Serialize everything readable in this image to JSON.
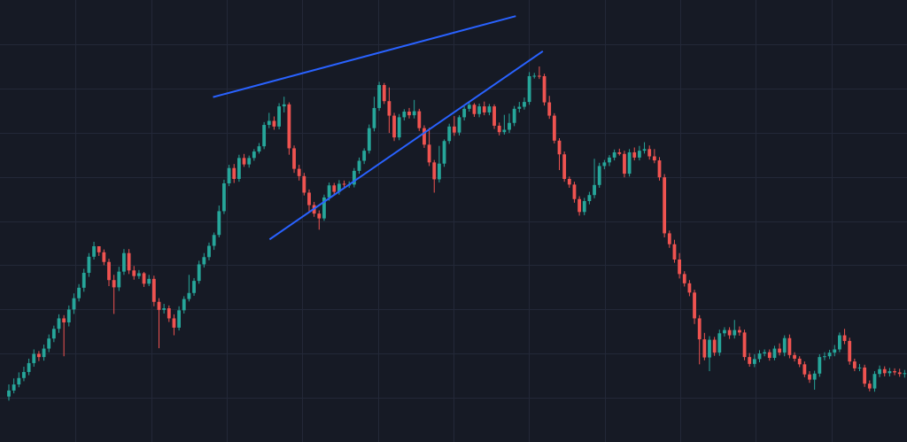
{
  "chart_data": {
    "type": "candlestick",
    "title": "",
    "xlabel": "",
    "ylabel": "",
    "grid": true,
    "legend": "none",
    "ylim": [
      0,
      100
    ],
    "colors": {
      "background": "#161a25",
      "grid": "#232838",
      "up": "#26a69a",
      "down": "#ef5350",
      "trendline": "#2962ff"
    },
    "candles": [
      [
        6.0,
        7.5,
        5.0,
        9.0
      ],
      [
        7.5,
        9.0,
        6.8,
        10.5
      ],
      [
        9.0,
        10.6,
        8.3,
        12.0
      ],
      [
        10.6,
        12.1,
        9.8,
        13.4
      ],
      [
        12.1,
        14.3,
        11.3,
        15.4
      ],
      [
        14.3,
        16.6,
        13.4,
        17.7
      ],
      [
        16.6,
        15.8,
        14.8,
        17.3
      ],
      [
        15.8,
        17.9,
        14.9,
        18.9
      ],
      [
        17.9,
        20.4,
        17.0,
        21.4
      ],
      [
        20.4,
        22.8,
        19.5,
        23.6
      ],
      [
        22.8,
        25.4,
        21.8,
        26.4
      ],
      [
        25.4,
        24.4,
        16.0,
        26.2
      ],
      [
        24.4,
        27.6,
        23.4,
        28.6
      ],
      [
        27.6,
        30.4,
        26.5,
        31.6
      ],
      [
        30.4,
        33.0,
        29.6,
        33.9
      ],
      [
        33.0,
        36.7,
        32.0,
        37.7
      ],
      [
        36.7,
        40.7,
        35.7,
        41.6
      ],
      [
        40.7,
        43.3,
        40.0,
        44.4
      ],
      [
        43.3,
        41.8,
        40.9,
        43.3
      ],
      [
        41.8,
        39.4,
        38.6,
        42.5
      ],
      [
        39.4,
        34.9,
        33.4,
        40.2
      ],
      [
        34.9,
        33.1,
        26.5,
        36.2
      ],
      [
        33.1,
        37.0,
        32.2,
        38.2
      ],
      [
        37.0,
        41.6,
        36.2,
        42.6
      ],
      [
        41.6,
        37.3,
        36.4,
        42.6
      ],
      [
        37.3,
        35.9,
        35.0,
        38.4
      ],
      [
        35.9,
        36.6,
        35.2,
        37.4
      ],
      [
        36.6,
        34.0,
        33.2,
        36.9
      ],
      [
        34.0,
        35.2,
        33.4,
        36.2
      ],
      [
        35.2,
        29.5,
        28.4,
        36.0
      ],
      [
        29.5,
        27.5,
        18.0,
        30.4
      ],
      [
        27.5,
        27.9,
        26.6,
        29.0
      ],
      [
        27.9,
        25.4,
        24.5,
        28.6
      ],
      [
        25.4,
        23.1,
        21.2,
        26.4
      ],
      [
        23.1,
        27.4,
        22.4,
        28.4
      ],
      [
        27.4,
        30.2,
        26.6,
        30.9
      ],
      [
        30.2,
        31.7,
        29.6,
        36.2
      ],
      [
        31.7,
        34.7,
        31.0,
        35.4
      ],
      [
        34.7,
        38.8,
        34.0,
        39.7
      ],
      [
        38.8,
        40.6,
        38.0,
        41.6
      ],
      [
        40.6,
        43.4,
        39.8,
        44.2
      ],
      [
        43.4,
        46.1,
        42.4,
        46.7
      ],
      [
        46.1,
        52.0,
        45.5,
        53.4
      ],
      [
        52.0,
        58.9,
        51.3,
        59.8
      ],
      [
        58.9,
        62.7,
        58.2,
        63.5
      ],
      [
        62.7,
        60.0,
        59.0,
        63.7
      ],
      [
        60.0,
        65.2,
        59.3,
        66.0
      ],
      [
        65.2,
        63.6,
        63.0,
        66.2
      ],
      [
        63.6,
        65.2,
        62.8,
        65.8
      ],
      [
        65.2,
        66.8,
        64.5,
        67.4
      ],
      [
        66.8,
        68.1,
        66.3,
        68.9
      ],
      [
        68.1,
        73.4,
        67.4,
        74.1
      ],
      [
        73.4,
        74.4,
        72.6,
        76.4
      ],
      [
        74.4,
        73.0,
        72.2,
        75.5
      ],
      [
        73.0,
        78.0,
        72.3,
        78.8
      ],
      [
        78.0,
        78.5,
        76.5,
        80.4
      ],
      [
        78.5,
        67.6,
        66.0,
        79.0
      ],
      [
        67.6,
        62.5,
        61.5,
        68.3
      ],
      [
        62.5,
        60.7,
        59.6,
        63.5
      ],
      [
        60.7,
        56.6,
        55.9,
        61.5
      ],
      [
        56.6,
        53.5,
        51.8,
        57.4
      ],
      [
        53.5,
        51.4,
        50.6,
        54.3
      ],
      [
        51.4,
        50.2,
        47.4,
        52.2
      ],
      [
        50.2,
        55.4,
        49.6,
        56.1
      ],
      [
        55.4,
        58.4,
        54.6,
        59.1
      ],
      [
        58.4,
        56.8,
        55.9,
        59.0
      ],
      [
        56.8,
        58.8,
        56.1,
        59.7
      ],
      [
        58.8,
        58.6,
        57.9,
        59.6
      ],
      [
        58.6,
        58.6,
        57.8,
        59.4
      ],
      [
        58.6,
        62.0,
        57.9,
        62.7
      ],
      [
        62.0,
        64.5,
        61.3,
        65.3
      ],
      [
        64.5,
        67.0,
        63.7,
        67.6
      ],
      [
        67.0,
        72.6,
        66.3,
        73.5
      ],
      [
        72.6,
        77.6,
        71.8,
        80.4
      ],
      [
        77.6,
        83.3,
        76.9,
        84.1
      ],
      [
        83.3,
        79.3,
        78.6,
        83.8
      ],
      [
        79.3,
        75.7,
        71.4,
        82.7
      ],
      [
        75.7,
        70.3,
        69.4,
        76.4
      ],
      [
        70.3,
        75.3,
        69.6,
        76.1
      ],
      [
        75.3,
        76.7,
        74.5,
        77.3
      ],
      [
        76.7,
        75.8,
        75.0,
        77.6
      ],
      [
        75.8,
        76.8,
        75.0,
        79.6
      ],
      [
        76.8,
        72.6,
        71.9,
        77.4
      ],
      [
        72.6,
        68.5,
        67.7,
        73.3
      ],
      [
        68.5,
        64.1,
        63.2,
        72.7
      ],
      [
        64.1,
        59.9,
        56.6,
        64.7
      ],
      [
        59.9,
        63.8,
        59.1,
        68.2
      ],
      [
        63.8,
        69.4,
        63.0,
        69.8
      ],
      [
        69.4,
        73.0,
        68.7,
        73.7
      ],
      [
        73.0,
        71.5,
        70.7,
        75.6
      ],
      [
        71.5,
        75.3,
        70.8,
        75.8
      ],
      [
        75.3,
        77.4,
        74.5,
        78.0
      ],
      [
        77.4,
        78.4,
        76.7,
        79.0
      ],
      [
        78.4,
        76.1,
        75.4,
        78.8
      ],
      [
        76.1,
        78.0,
        75.3,
        78.7
      ],
      [
        78.0,
        76.5,
        75.8,
        79.2
      ],
      [
        76.5,
        78.0,
        75.8,
        78.6
      ],
      [
        78.0,
        73.2,
        72.4,
        78.5
      ],
      [
        73.2,
        71.6,
        70.8,
        74.0
      ],
      [
        71.6,
        72.2,
        71.0,
        75.9
      ],
      [
        72.2,
        73.9,
        71.4,
        76.2
      ],
      [
        73.9,
        77.4,
        73.1,
        78.1
      ],
      [
        77.4,
        77.9,
        76.5,
        79.1
      ],
      [
        77.9,
        79.1,
        77.2,
        80.2
      ],
      [
        79.1,
        85.5,
        78.4,
        86.5
      ],
      [
        85.5,
        85.6,
        84.9,
        86.3
      ],
      [
        85.6,
        85.5,
        84.8,
        87.9
      ],
      [
        85.5,
        79.0,
        78.2,
        86.1
      ],
      [
        79.0,
        75.7,
        74.9,
        80.6
      ],
      [
        75.7,
        69.5,
        68.8,
        76.3
      ],
      [
        69.5,
        66.1,
        62.2,
        70.1
      ],
      [
        66.1,
        60.0,
        59.3,
        66.8
      ],
      [
        60.0,
        58.6,
        57.8,
        60.6
      ],
      [
        58.6,
        55.0,
        54.1,
        59.3
      ],
      [
        55.0,
        51.8,
        50.9,
        55.7
      ],
      [
        51.8,
        54.5,
        51.0,
        55.3
      ],
      [
        54.5,
        56.0,
        53.7,
        56.8
      ],
      [
        56.0,
        58.5,
        55.2,
        65.0
      ],
      [
        58.5,
        63.2,
        57.8,
        64.0
      ],
      [
        63.2,
        64.1,
        62.4,
        64.7
      ],
      [
        64.1,
        65.3,
        63.2,
        65.9
      ],
      [
        65.3,
        66.6,
        64.6,
        67.3
      ],
      [
        66.6,
        66.2,
        65.8,
        67.5
      ],
      [
        66.2,
        61.3,
        60.4,
        67.0
      ],
      [
        61.3,
        66.6,
        60.6,
        67.4
      ],
      [
        66.6,
        65.3,
        64.6,
        67.8
      ],
      [
        65.3,
        67.0,
        64.6,
        68.2
      ],
      [
        67.0,
        67.4,
        66.3,
        69.1
      ],
      [
        67.4,
        65.6,
        64.8,
        68.3
      ],
      [
        65.6,
        64.6,
        63.9,
        67.4
      ],
      [
        64.6,
        60.4,
        59.6,
        65.4
      ],
      [
        60.4,
        46.5,
        45.5,
        61.2
      ],
      [
        46.5,
        43.8,
        42.9,
        47.2
      ],
      [
        43.8,
        40.0,
        39.2,
        44.9
      ],
      [
        40.0,
        36.4,
        35.3,
        41.6
      ],
      [
        36.4,
        34.1,
        33.3,
        37.1
      ],
      [
        34.1,
        31.8,
        30.9,
        34.9
      ],
      [
        31.8,
        25.4,
        24.0,
        32.5
      ],
      [
        25.4,
        20.2,
        14.0,
        26.2
      ],
      [
        20.2,
        15.7,
        15.0,
        21.8
      ],
      [
        15.7,
        20.1,
        12.3,
        21.0
      ],
      [
        20.1,
        16.9,
        16.1,
        20.8
      ],
      [
        16.9,
        21.7,
        16.1,
        22.6
      ],
      [
        21.7,
        22.5,
        20.9,
        23.2
      ],
      [
        22.5,
        21.2,
        20.3,
        23.2
      ],
      [
        21.2,
        22.5,
        20.4,
        25.0
      ],
      [
        22.5,
        21.9,
        21.1,
        23.4
      ],
      [
        21.9,
        15.8,
        15.0,
        22.6
      ],
      [
        15.8,
        14.1,
        13.4,
        16.8
      ],
      [
        14.1,
        15.3,
        13.3,
        16.5
      ],
      [
        15.3,
        16.7,
        14.5,
        17.5
      ],
      [
        16.7,
        17.0,
        16.0,
        17.7
      ],
      [
        17.0,
        15.6,
        14.9,
        17.7
      ],
      [
        15.6,
        17.9,
        15.0,
        18.6
      ],
      [
        17.9,
        16.9,
        16.2,
        19.2
      ],
      [
        16.9,
        20.5,
        16.0,
        21.2
      ],
      [
        20.5,
        16.3,
        15.5,
        21.4
      ],
      [
        16.3,
        15.4,
        14.7,
        17.0
      ],
      [
        15.4,
        14.0,
        13.3,
        16.0
      ],
      [
        14.0,
        11.5,
        10.8,
        14.7
      ],
      [
        11.5,
        10.2,
        9.4,
        12.3
      ],
      [
        10.2,
        11.7,
        7.7,
        12.4
      ],
      [
        11.7,
        15.8,
        10.9,
        16.5
      ],
      [
        15.8,
        16.0,
        15.0,
        17.0
      ],
      [
        16.0,
        16.9,
        15.3,
        17.6
      ],
      [
        16.9,
        17.7,
        16.0,
        18.8
      ],
      [
        17.7,
        21.2,
        17.0,
        21.9
      ],
      [
        21.2,
        19.8,
        19.0,
        22.8
      ],
      [
        19.8,
        14.7,
        13.9,
        20.6
      ],
      [
        14.7,
        13.0,
        12.3,
        15.4
      ],
      [
        13.0,
        13.2,
        12.3,
        14.1
      ],
      [
        13.2,
        9.2,
        8.4,
        13.9
      ],
      [
        9.2,
        8.0,
        7.3,
        10.0
      ],
      [
        8.0,
        11.6,
        7.2,
        12.3
      ],
      [
        11.6,
        12.8,
        10.8,
        13.7
      ],
      [
        12.8,
        11.8,
        11.0,
        13.5
      ],
      [
        11.8,
        12.3,
        11.0,
        13.1
      ],
      [
        12.3,
        12.0,
        11.3,
        13.0
      ],
      [
        12.0,
        11.6,
        10.9,
        12.9
      ],
      [
        11.6,
        11.8,
        10.7,
        12.6
      ],
      [
        11.8,
        12.8,
        11.0,
        13.6
      ],
      [
        12.8,
        12.0,
        11.3,
        13.5
      ],
      [
        12.0,
        11.6,
        10.9,
        12.8
      ],
      [
        11.6,
        10.2,
        9.5,
        12.3
      ],
      [
        10.2,
        10.0,
        9.3,
        10.8
      ],
      [
        10.0,
        9.4,
        8.7,
        10.6
      ]
    ],
    "trendlines": [
      {
        "x": [
          40.8,
          101.3
        ],
        "y": [
          80.3,
          100.4
        ]
      },
      {
        "x": [
          52.1,
          106.7
        ],
        "y": [
          45.0,
          91.7
        ]
      }
    ]
  }
}
